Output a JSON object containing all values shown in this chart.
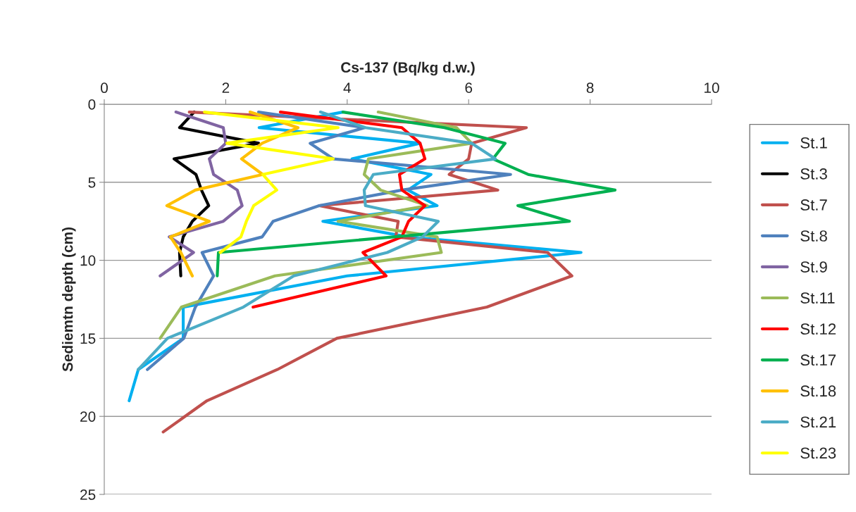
{
  "chart_data": {
    "type": "line",
    "xlabel": "Cs-137 (Bq/kg d.w.)",
    "ylabel": "Sediemtn depth (cm)",
    "xlim": [
      0,
      10
    ],
    "xticks": [
      0,
      2,
      4,
      6,
      8,
      10
    ],
    "ylim": [
      25,
      0
    ],
    "yticks": [
      0,
      5,
      10,
      15,
      20,
      25
    ],
    "grid": "y",
    "legend": "right",
    "marker": "none",
    "line_style": "solid",
    "series": [
      {
        "name": "St.1",
        "color": "#00b0f0",
        "x": [
          3.93,
          2.55,
          5.2,
          4.08,
          5.38,
          5.0,
          5.48,
          3.6,
          5.0,
          7.85,
          4.0,
          1.3,
          1.3,
          0.56,
          0.41
        ],
        "values": [
          0.5,
          1.5,
          2.5,
          3.5,
          4.5,
          5.5,
          6.5,
          7.5,
          8.5,
          9.5,
          11,
          13,
          15,
          17,
          19
        ]
      },
      {
        "name": "St.3",
        "color": "#000000",
        "x": [
          1.48,
          1.24,
          2.54,
          1.15,
          1.51,
          1.6,
          1.72,
          1.45,
          1.3,
          1.24,
          1.26
        ],
        "values": [
          0.5,
          1.5,
          2.5,
          3.5,
          4.5,
          5.5,
          6.5,
          7.5,
          8.5,
          9.5,
          11
        ]
      },
      {
        "name": "St.7",
        "color": "#c0504d",
        "x": [
          1.4,
          6.95,
          6.05,
          6.0,
          5.68,
          6.48,
          3.54,
          4.84,
          4.8,
          7.3,
          7.7,
          6.3,
          3.83,
          2.85,
          1.69,
          0.97
        ],
        "values": [
          0.5,
          1.5,
          2.5,
          3.5,
          4.5,
          5.5,
          6.5,
          7.5,
          8.5,
          9.5,
          11,
          13,
          15,
          17,
          19,
          21
        ]
      },
      {
        "name": "St.8",
        "color": "#4f81bd",
        "x": [
          2.54,
          4.29,
          3.39,
          3.77,
          6.69,
          4.9,
          3.54,
          2.78,
          2.6,
          1.61,
          1.8,
          1.5,
          1.31,
          0.71
        ],
        "values": [
          0.5,
          1.5,
          2.5,
          3.5,
          4.5,
          5.5,
          6.5,
          7.5,
          8.5,
          9.5,
          11,
          13,
          15,
          17
        ]
      },
      {
        "name": "St.9",
        "color": "#8064a2",
        "x": [
          1.18,
          1.96,
          2.0,
          1.73,
          1.8,
          2.19,
          2.27,
          1.96,
          1.07,
          1.47,
          0.92
        ],
        "values": [
          0.5,
          1.5,
          2.5,
          3.5,
          4.5,
          5.5,
          6.5,
          7.5,
          8.5,
          9.5,
          11
        ]
      },
      {
        "name": "St.11",
        "color": "#9bbb59",
        "x": [
          4.51,
          5.8,
          6.05,
          4.35,
          4.28,
          4.55,
          5.32,
          3.85,
          5.48,
          5.55,
          2.81,
          1.27,
          0.92
        ],
        "values": [
          0.5,
          1.5,
          2.5,
          3.5,
          4.5,
          5.5,
          6.5,
          7.5,
          8.5,
          9.5,
          11,
          13,
          15
        ]
      },
      {
        "name": "St.12",
        "color": "#ff0000",
        "x": [
          2.9,
          4.9,
          5.2,
          5.28,
          4.86,
          4.9,
          5.28,
          5.01,
          4.9,
          4.26,
          4.64,
          2.45
        ],
        "values": [
          0.5,
          1.5,
          2.5,
          3.5,
          4.5,
          5.5,
          6.5,
          7.5,
          8.5,
          9.5,
          11,
          13
        ]
      },
      {
        "name": "St.17",
        "color": "#00b050",
        "x": [
          3.93,
          5.6,
          6.6,
          6.4,
          6.98,
          8.41,
          6.81,
          7.66,
          1.88,
          1.86
        ],
        "values": [
          0.5,
          1.5,
          2.5,
          3.5,
          4.5,
          5.5,
          6.5,
          7.5,
          9.5,
          11
        ]
      },
      {
        "name": "St.18",
        "color": "#ffc000",
        "x": [
          2.4,
          3.19,
          2.6,
          2.26,
          2.61,
          1.5,
          1.03,
          1.73,
          1.09,
          1.26,
          1.45
        ],
        "values": [
          0.5,
          1.5,
          2.5,
          3.5,
          4.5,
          5.5,
          6.5,
          7.5,
          8.5,
          9.5,
          11
        ]
      },
      {
        "name": "St.21",
        "color": "#4bacc6",
        "x": [
          3.56,
          4.3,
          6.05,
          6.44,
          4.43,
          4.28,
          4.3,
          5.5,
          5.24,
          4.66,
          3.12,
          2.29,
          1.04,
          0.56
        ],
        "values": [
          0.5,
          1.5,
          2.5,
          3.5,
          4.5,
          5.5,
          6.5,
          7.5,
          8.5,
          9.5,
          11,
          13,
          15,
          17
        ]
      },
      {
        "name": "St.23",
        "color": "#ffff00",
        "x": [
          1.65,
          3.85,
          2.02,
          3.77,
          2.61,
          2.84,
          2.46,
          2.34,
          2.25,
          1.91
        ],
        "values": [
          0.5,
          1.5,
          2.5,
          3.5,
          4.5,
          5.5,
          6.5,
          7.5,
          8.5,
          9.5
        ]
      }
    ]
  }
}
